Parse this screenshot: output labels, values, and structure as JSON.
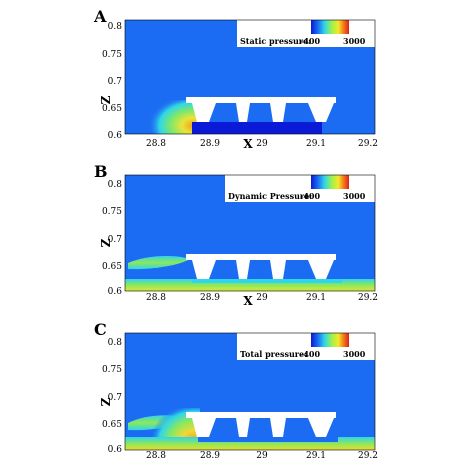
{
  "panels": [
    {
      "letter": "A",
      "legend_title": "Static pressure:",
      "legend_min": "-400",
      "legend_max": "3000"
    },
    {
      "letter": "B",
      "legend_title": "Dynamic Pressure:",
      "legend_min": "-400",
      "legend_max": "3000"
    },
    {
      "letter": "C",
      "legend_title": "Total pressure:",
      "legend_min": "-400",
      "legend_max": "3000"
    }
  ],
  "axes": {
    "x_label": "X",
    "z_label": "Z",
    "x_ticks": [
      "28.8",
      "28.9",
      "29",
      "29.1",
      "29.2"
    ],
    "z_ticks": [
      "0.8",
      "0.75",
      "0.7",
      "0.65",
      "0.6"
    ]
  },
  "colors": {
    "background_field": "#1b6cf2",
    "colormap": [
      "#0b1ad6",
      "#1b6cf2",
      "#2fd6ea",
      "#9ef24a",
      "#f2e82a",
      "#f27a1a",
      "#e0201a"
    ]
  }
}
